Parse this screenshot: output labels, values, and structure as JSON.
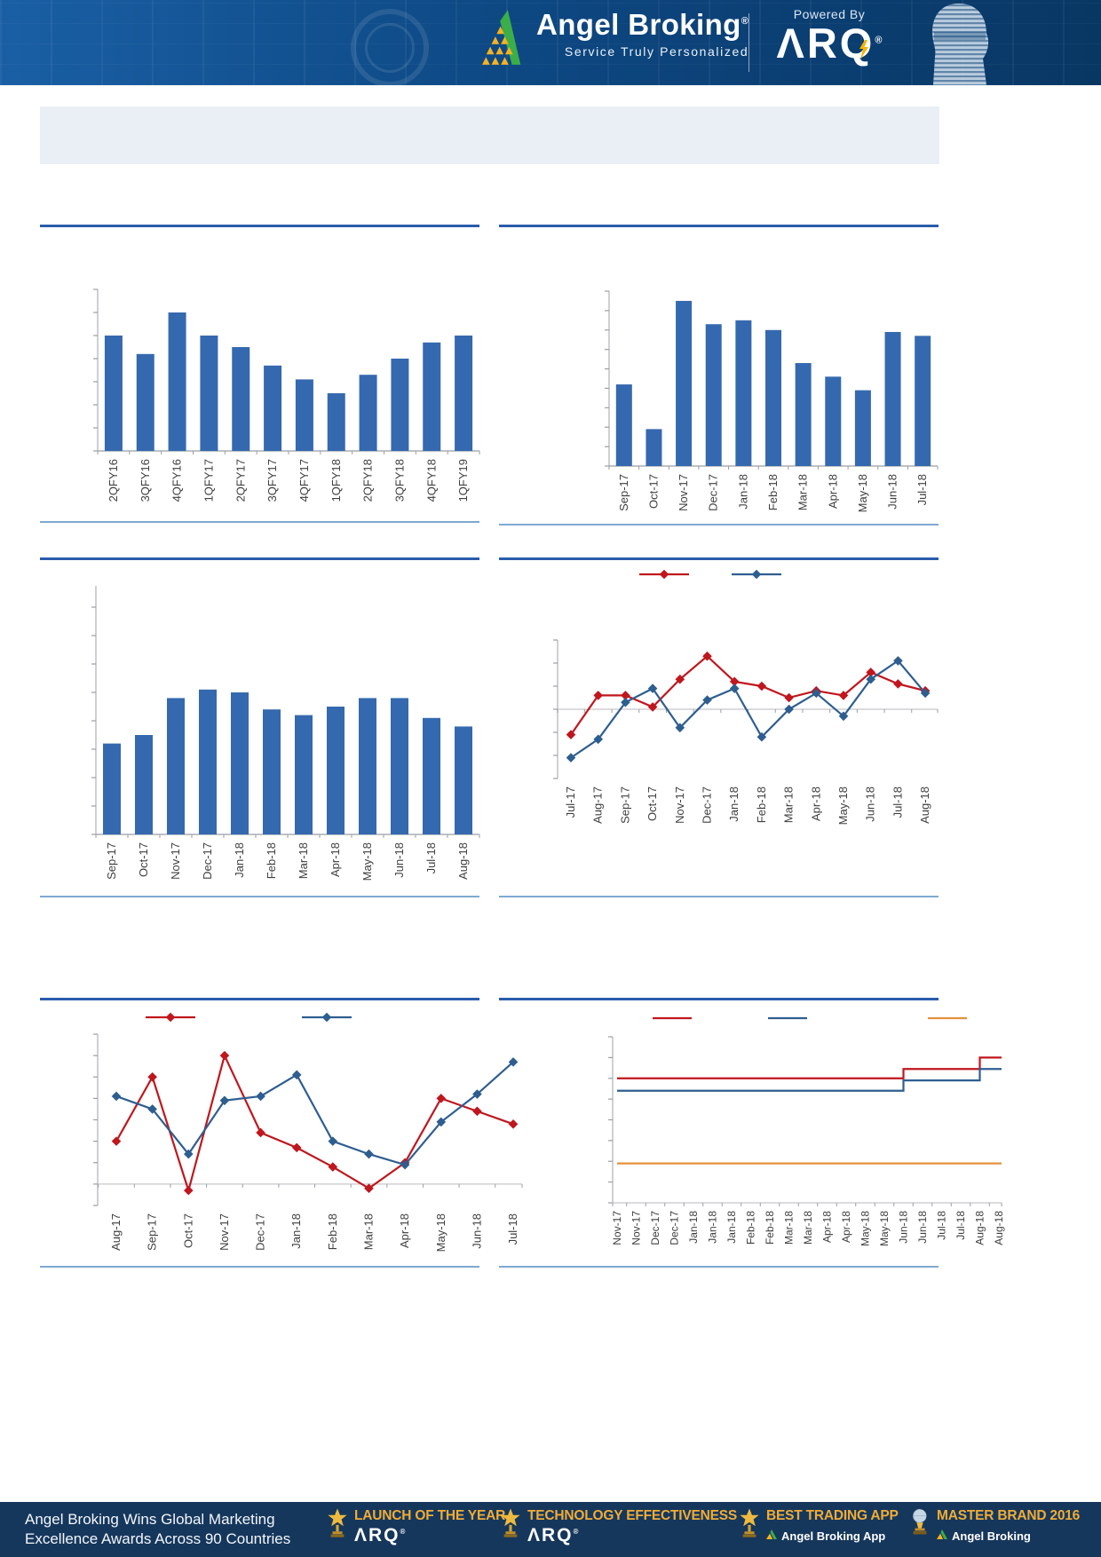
{
  "header": {
    "brand": {
      "name": "Angel Broking",
      "registered": "®",
      "tagline": "Service Truly Personalized"
    },
    "powered_by": {
      "label": "Powered By",
      "product": "ARQ",
      "registered": "®"
    },
    "colors": {
      "band": "#0C4784",
      "logo_green": "#3BAE49",
      "logo_yellow": "#F6B221"
    }
  },
  "banner": {
    "text": ""
  },
  "chart_data": [
    {
      "id": "quarterly-bars",
      "type": "bar",
      "title": "",
      "categories": [
        "2QFY16",
        "3QFY16",
        "4QFY16",
        "1QFY17",
        "2QFY17",
        "3QFY17",
        "4QFY17",
        "1QFY18",
        "2QFY18",
        "3QFY18",
        "4QFY18",
        "1QFY19"
      ],
      "values": [
        50,
        42,
        60,
        50,
        45,
        37,
        31,
        25,
        33,
        40,
        47,
        50
      ],
      "ylim": [
        0,
        70
      ],
      "y_tick_step": 10,
      "units": "unlabeled-axis-estimated",
      "bar_color": "#3569AF",
      "grid": false,
      "legend_position": "none"
    },
    {
      "id": "monthly-bars",
      "type": "bar",
      "title": "",
      "categories": [
        "Sep-17",
        "Oct-17",
        "Nov-17",
        "Dec-17",
        "Jan-18",
        "Feb-18",
        "Mar-18",
        "Apr-18",
        "May-18",
        "Jun-18",
        "Jul-18"
      ],
      "values": [
        42,
        19,
        85,
        73,
        75,
        70,
        53,
        46,
        39,
        69,
        67
      ],
      "ylim": [
        0,
        90
      ],
      "y_tick_step": 10,
      "units": "unlabeled-axis-estimated",
      "bar_color": "#3569AF",
      "grid": false,
      "legend_position": "none"
    },
    {
      "id": "monthly-bars-2",
      "type": "bar",
      "title": "",
      "categories": [
        "Sep-17",
        "Oct-17",
        "Nov-17",
        "Dec-17",
        "Jan-18",
        "Feb-18",
        "Mar-18",
        "Apr-18",
        "May-18",
        "Jun-18",
        "Jul-18",
        "Aug-18"
      ],
      "values": [
        32,
        35,
        48,
        51,
        50,
        44,
        42,
        45,
        48,
        48,
        41,
        38
      ],
      "ylim": [
        0,
        80
      ],
      "y_tick_step": 10,
      "units": "unlabeled-axis-estimated",
      "bar_color": "#3569AF",
      "grid": false,
      "legend_position": "none"
    },
    {
      "id": "momentum-lines",
      "type": "line",
      "title": "",
      "categories": [
        "Jul-17",
        "Aug-17",
        "Sep-17",
        "Oct-17",
        "Nov-17",
        "Dec-17",
        "Jan-18",
        "Feb-18",
        "Mar-18",
        "Apr-18",
        "May-18",
        "Jun-18",
        "Jul-18",
        "Aug-18"
      ],
      "series": [
        {
          "label": "",
          "color": "#C0161D",
          "marker": "diamond",
          "values": [
            -1.1,
            0.6,
            0.6,
            0.1,
            1.3,
            2.3,
            1.2,
            1.0,
            0.5,
            0.8,
            0.6,
            1.6,
            1.1,
            0.8
          ]
        },
        {
          "label": "",
          "color": "#2E5E90",
          "marker": "diamond",
          "values": [
            -2.1,
            -1.3,
            0.3,
            0.9,
            -0.8,
            0.4,
            0.9,
            -1.2,
            0.0,
            0.7,
            -0.3,
            1.3,
            2.1,
            0.7
          ]
        }
      ],
      "ylim": [
        -3,
        3
      ],
      "y_tick_step": 1,
      "zero_line": true,
      "units": "unlabeled-axis-estimated",
      "grid": false,
      "legend_position": "top",
      "legend_labels_visible": false
    },
    {
      "id": "growth-lines",
      "type": "line",
      "title": "",
      "categories": [
        "Aug-17",
        "Sep-17",
        "Oct-17",
        "Nov-17",
        "Dec-17",
        "Jan-18",
        "Feb-18",
        "Mar-18",
        "Apr-18",
        "May-18",
        "Jun-18",
        "Jul-18"
      ],
      "series": [
        {
          "label": "",
          "color": "#C0161D",
          "marker": "diamond",
          "values": [
            2.0,
            5.0,
            -0.3,
            6.0,
            2.4,
            1.7,
            0.8,
            -0.2,
            1.0,
            4.0,
            3.4,
            2.8
          ]
        },
        {
          "label": "",
          "color": "#2E5E90",
          "marker": "diamond",
          "values": [
            4.1,
            3.5,
            1.4,
            3.9,
            4.1,
            5.1,
            2.0,
            1.4,
            0.9,
            2.9,
            4.2,
            5.7
          ]
        }
      ],
      "ylim": [
        -1,
        7
      ],
      "y_tick_step": 1,
      "zero_line": true,
      "units": "unlabeled-axis-estimated",
      "grid": false,
      "legend_position": "top",
      "legend_labels_visible": false
    },
    {
      "id": "step-lines",
      "type": "step",
      "title": "",
      "categories": [
        "Nov-17",
        "Nov-17",
        "Dec-17",
        "Dec-17",
        "Jan-18",
        "Jan-18",
        "Jan-18",
        "Feb-18",
        "Feb-18",
        "Mar-18",
        "Mar-18",
        "Apr-18",
        "Apr-18",
        "May-18",
        "May-18",
        "Jun-18",
        "Jun-18",
        "Jul-18",
        "Jul-18",
        "Aug-18",
        "Aug-18"
      ],
      "series": [
        {
          "label": "",
          "color": "#C0161D",
          "marker": "line",
          "values": [
            6,
            6,
            6,
            6,
            6,
            6,
            6,
            6,
            6,
            6,
            6,
            6,
            6,
            6,
            6,
            6.45,
            6.45,
            6.45,
            6.45,
            7,
            7
          ]
        },
        {
          "label": "",
          "color": "#2E5E90",
          "marker": "line",
          "values": [
            5.4,
            5.4,
            5.4,
            5.4,
            5.4,
            5.4,
            5.4,
            5.4,
            5.4,
            5.4,
            5.4,
            5.4,
            5.4,
            5.4,
            5.4,
            5.9,
            5.9,
            5.9,
            5.9,
            6.45,
            6.45
          ]
        },
        {
          "label": "",
          "color": "#E5913F",
          "marker": "line",
          "values": [
            1.9,
            1.9,
            1.9,
            1.9,
            1.9,
            1.9,
            1.9,
            1.9,
            1.9,
            1.9,
            1.9,
            1.9,
            1.9,
            1.9,
            1.9,
            1.9,
            1.9,
            1.9,
            1.9,
            1.9,
            1.9
          ]
        }
      ],
      "ylim": [
        0,
        8
      ],
      "y_tick_step": 1,
      "units": "unlabeled-axis-estimated",
      "grid": false,
      "legend_position": "top",
      "legend_labels_visible": false
    }
  ],
  "footer": {
    "headline_line1": "Angel Broking Wins Global Marketing",
    "headline_line2": "Excellence Awards Across 90 Countries",
    "awards": [
      {
        "title": "LAUNCH OF THE YEAR",
        "subtitle": "ARQ",
        "icon": "trophy-icon"
      },
      {
        "title": "TECHNOLOGY EFFECTIVENESS",
        "subtitle": "ARQ",
        "icon": "trophy-icon"
      },
      {
        "title": "BEST TRADING APP",
        "subtitle": "Angel Broking App",
        "icon": "trophy-icon"
      },
      {
        "title": "MASTER BRAND 2016",
        "subtitle": "Angel Broking",
        "icon": "globe-trophy-icon"
      }
    ],
    "colors": {
      "background": "#16375C",
      "gold": "#F0AC35"
    }
  }
}
